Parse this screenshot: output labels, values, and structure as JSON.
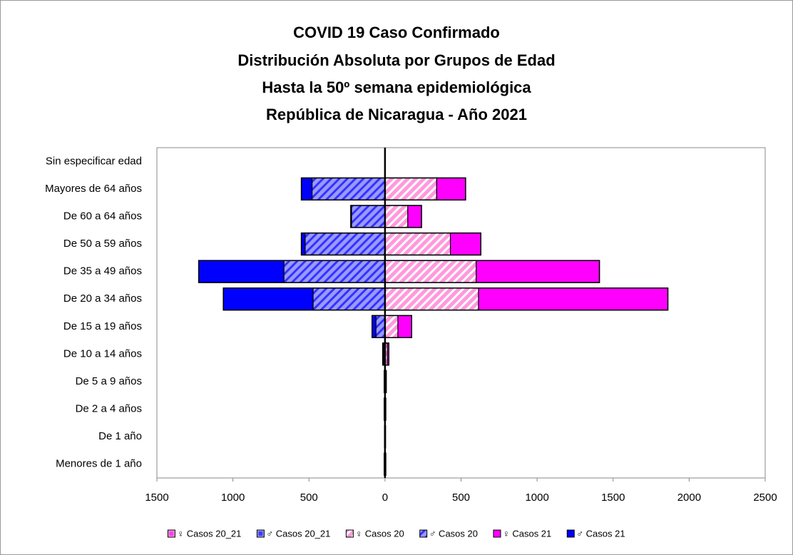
{
  "chart_data": {
    "type": "pyramid",
    "title": [
      "COVID 19 Caso Confirmado",
      "Distribución Absoluta por Grupos de Edad",
      "Hasta la 50º semana epidemiológica",
      "República de Nicaragua - Año 2021"
    ],
    "categories": [
      "Sin especificar edad",
      "Mayores de 64 años",
      "De 60 a 64 años",
      "De 50 a 59 años",
      "De 35 a 49 años",
      "De 20 a 34 años",
      "De 15 a 19 años",
      "De 10 a 14 años",
      "De 5 a 9 años",
      "De 2 a 4 años",
      "De 1 año",
      "Menores de 1 año"
    ],
    "series": [
      {
        "name": "♀ Casos 20_21",
        "color": "#ff00ff",
        "role": "total",
        "values": [
          0,
          530,
          240,
          630,
          1410,
          1860,
          175,
          25,
          8,
          5,
          3,
          5
        ]
      },
      {
        "name": "♂ Casos 20_21",
        "color": "#0000ff",
        "role": "total",
        "values": [
          0,
          -550,
          -225,
          -550,
          -1225,
          -1063,
          -85,
          -15,
          -5,
          -5,
          -3,
          -5
        ]
      },
      {
        "name": "♀ Casos 20",
        "color": "#ff99dd",
        "role": "hatched",
        "values": [
          0,
          340,
          150,
          430,
          600,
          615,
          85,
          15,
          5,
          3,
          2,
          3
        ]
      },
      {
        "name": "♂ Casos 20",
        "color": "#9999ff",
        "role": "hatched",
        "values": [
          0,
          -480,
          -220,
          -525,
          -665,
          -473,
          -60,
          -10,
          -3,
          -3,
          -2,
          -3
        ]
      },
      {
        "name": "♀ Casos 21",
        "color": "#ff00ff",
        "role": "solid",
        "values": [
          0,
          190,
          90,
          200,
          810,
          1245,
          90,
          10,
          3,
          2,
          1,
          2
        ]
      },
      {
        "name": "♂ Casos 21",
        "color": "#0000ff",
        "role": "solid",
        "values": [
          0,
          -70,
          -5,
          -25,
          -560,
          -590,
          -25,
          -5,
          -2,
          -2,
          -1,
          -2
        ]
      }
    ],
    "xlim": [
      -1500,
      2500
    ],
    "xticks": [
      {
        "value": -1500,
        "label": "1500"
      },
      {
        "value": -1000,
        "label": "1000"
      },
      {
        "value": -500,
        "label": "500"
      },
      0,
      500,
      1000,
      1500,
      2000,
      2500
    ]
  }
}
